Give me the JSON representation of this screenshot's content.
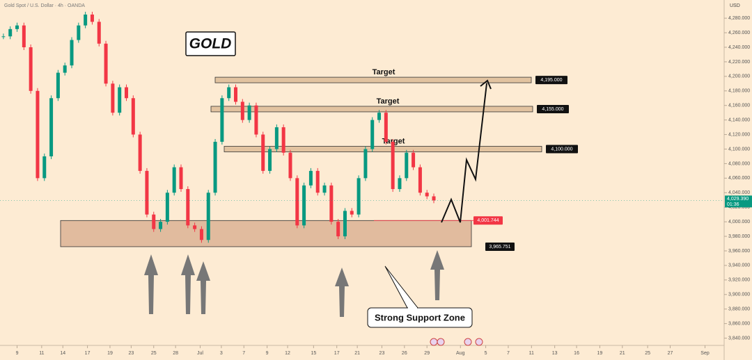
{
  "chart_data": {
    "type": "candlestick",
    "title": "Gold Spot / U.S. Dollar · 4h · OANDA",
    "label": "GOLD",
    "y_axis_label": "USD",
    "x": [
      0,
      1,
      2,
      3,
      4,
      5,
      6,
      7,
      8,
      9,
      10,
      11,
      12,
      13,
      14,
      15,
      16,
      17,
      18,
      19,
      20,
      21,
      22,
      23,
      24,
      25,
      26,
      27,
      28,
      29,
      30,
      31,
      32,
      33,
      34,
      35,
      36,
      37,
      38,
      39,
      40,
      41,
      42,
      43,
      44,
      45,
      46,
      47,
      48,
      49,
      50,
      51,
      52,
      53,
      54,
      55,
      56,
      57,
      58,
      59,
      60,
      61,
      62,
      63
    ],
    "series": [
      {
        "up_color": "#089981",
        "down_color": "#f23645",
        "values": [
          4255,
          4265,
          4270,
          4240,
          4180,
          4060,
          4090,
          4170,
          4205,
          4215,
          4250,
          4270,
          4285,
          4275,
          4245,
          4190,
          4150,
          4185,
          4170,
          4120,
          4070,
          4010,
          3990,
          4000,
          4040,
          4075,
          4045,
          3995,
          3990,
          3975,
          4040,
          4110,
          4170,
          4185,
          4165,
          4140,
          4160,
          4120,
          4070,
          4100,
          4130,
          4095,
          4060,
          3995,
          4050,
          4070,
          4040,
          4050,
          4000,
          3980,
          4015,
          4010,
          4060,
          4100,
          4140,
          4150,
          4110,
          4045,
          4060,
          4095,
          4075,
          4040,
          4035,
          4029.39
        ]
      }
    ],
    "xlim": [
      -0.5,
      105.5
    ],
    "xticks": [
      {
        "value": 2,
        "label": "9"
      },
      {
        "value": 5.6,
        "label": "11"
      },
      {
        "value": 8.7,
        "label": "14"
      },
      {
        "value": 12.3,
        "label": "17"
      },
      {
        "value": 15.6,
        "label": "19"
      },
      {
        "value": 18.7,
        "label": "23"
      },
      {
        "value": 22,
        "label": "25"
      },
      {
        "value": 25.2,
        "label": "28"
      },
      {
        "value": 28.8,
        "label": "Jul"
      },
      {
        "value": 31.9,
        "label": "3"
      },
      {
        "value": 35.2,
        "label": "7"
      },
      {
        "value": 38.6,
        "label": "9"
      },
      {
        "value": 41.6,
        "label": "12"
      },
      {
        "value": 45.4,
        "label": "15"
      },
      {
        "value": 48.8,
        "label": "17"
      },
      {
        "value": 51.8,
        "label": "21"
      },
      {
        "value": 55.4,
        "label": "23"
      },
      {
        "value": 58.7,
        "label": "26"
      },
      {
        "value": 62,
        "label": "29"
      },
      {
        "value": 66.9,
        "label": "Aug"
      },
      {
        "value": 70.6,
        "label": "5"
      },
      {
        "value": 73.9,
        "label": "7"
      },
      {
        "value": 77.3,
        "label": "11"
      },
      {
        "value": 80.7,
        "label": "13"
      },
      {
        "value": 83.9,
        "label": "16"
      },
      {
        "value": 87.3,
        "label": "19"
      },
      {
        "value": 90.6,
        "label": "21"
      },
      {
        "value": 94.3,
        "label": "25"
      },
      {
        "value": 97.6,
        "label": "27"
      },
      {
        "value": 102.7,
        "label": "Sep"
      }
    ],
    "ylim": [
      3830,
      4305
    ],
    "yticks": [
      {
        "value": 4280,
        "label": "4,280.000"
      },
      {
        "value": 4260,
        "label": "4,260.000"
      },
      {
        "value": 4240,
        "label": "4,240.000"
      },
      {
        "value": 4220,
        "label": "4,220.000"
      },
      {
        "value": 4200,
        "label": "4,200.000"
      },
      {
        "value": 4180,
        "label": "4,180.000"
      },
      {
        "value": 4160,
        "label": "4,160.000"
      },
      {
        "value": 4140,
        "label": "4,140.000"
      },
      {
        "value": 4120,
        "label": "4,120.000"
      },
      {
        "value": 4100,
        "label": "4,100.000"
      },
      {
        "value": 4080,
        "label": "4,080.000"
      },
      {
        "value": 4060,
        "label": "4,060.000"
      },
      {
        "value": 4040,
        "label": "4,040.000"
      },
      {
        "value": 4020,
        "label": "4,020.000"
      },
      {
        "value": 4000,
        "label": "4,000.000"
      },
      {
        "value": 3980,
        "label": "3,980.000"
      },
      {
        "value": 3960,
        "label": "3,960.000"
      },
      {
        "value": 3940,
        "label": "3,940.000"
      },
      {
        "value": 3920,
        "label": "3,920.000"
      },
      {
        "value": 3900,
        "label": "3,900.000"
      },
      {
        "value": 3880,
        "label": "3,880.000"
      },
      {
        "value": 3860,
        "label": "3,860.000"
      },
      {
        "value": 3840,
        "label": "3,840.000"
      }
    ],
    "last_price": {
      "value": 4029.39,
      "label": "4,029.390",
      "countdown": "01:36"
    },
    "targets": {
      "labels": [
        "Target",
        "Target",
        "Target"
      ],
      "values": [
        4195,
        4155,
        4100
      ],
      "value_labels": [
        "4,195.000",
        "4,155.000",
        "4,100.000"
      ]
    },
    "support_zone": {
      "label": "Strong Support Zone",
      "values": [
        3965.751,
        4001.744
      ],
      "value_labels": [
        "3,965.751",
        "4,001.744"
      ]
    }
  }
}
